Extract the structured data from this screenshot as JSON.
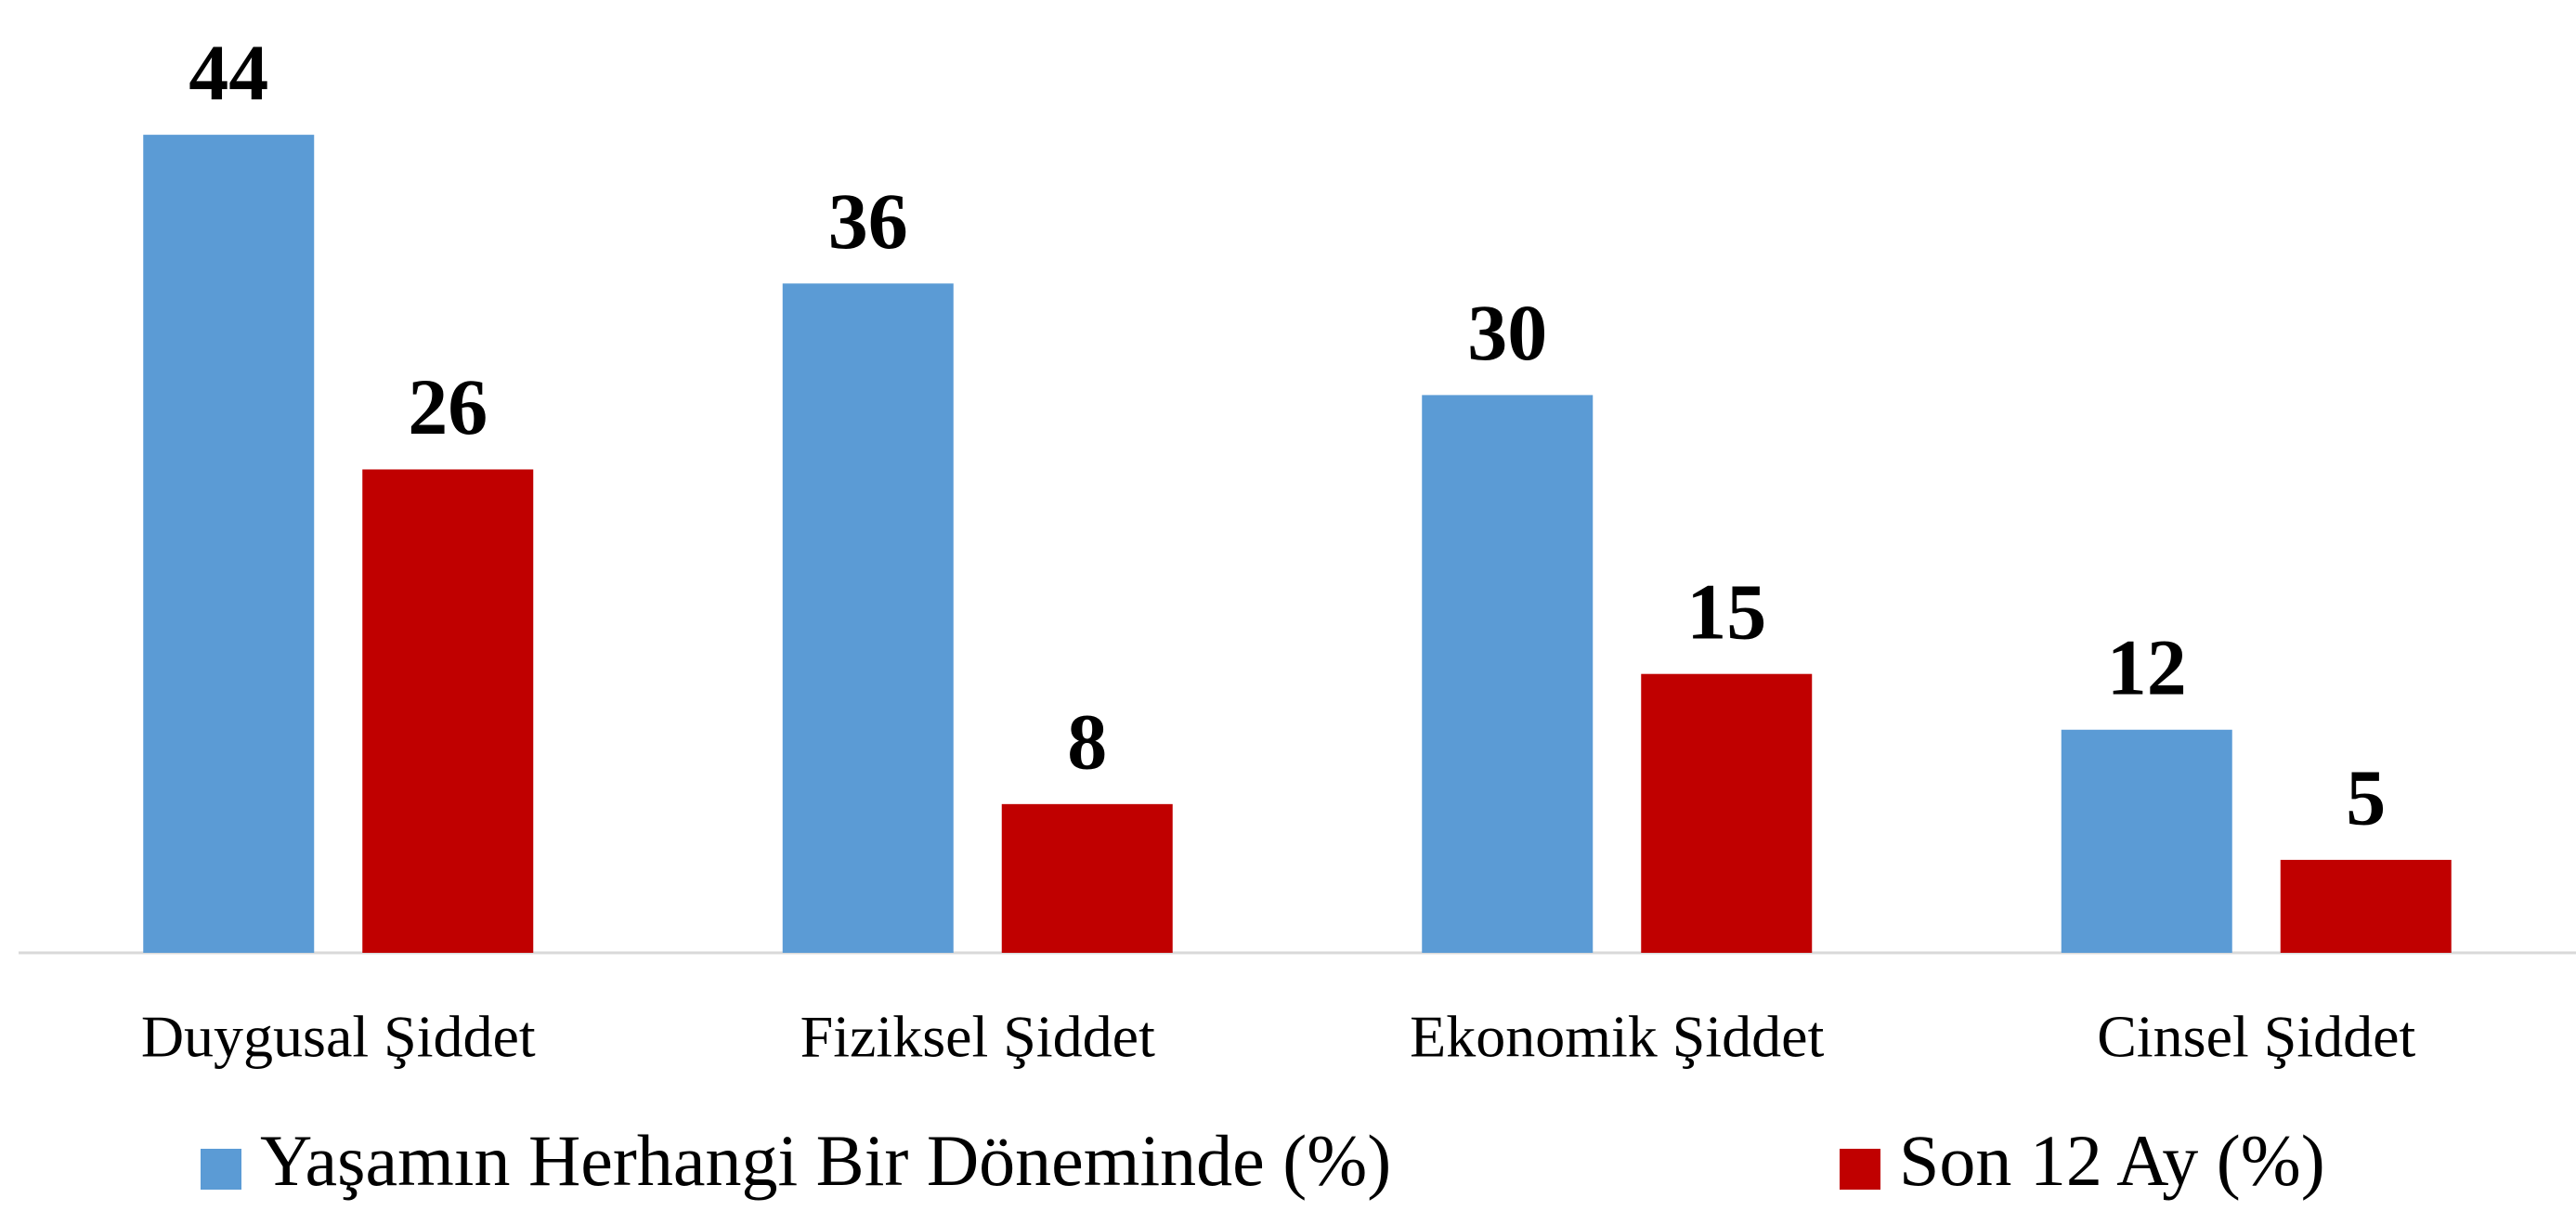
{
  "chart_data": {
    "type": "bar",
    "categories": [
      "Duygusal Şiddet",
      "Fiziksel Şiddet",
      "Ekonomik Şiddet",
      "Cinsel Şiddet"
    ],
    "series": [
      {
        "name": "Yaşamın Herhangi Bir Döneminde (%)",
        "color": "#5b9bd5",
        "values": [
          44,
          36,
          30,
          12
        ]
      },
      {
        "name": "Son 12 Ay (%)",
        "color": "#c00000",
        "values": [
          26,
          8,
          15,
          5
        ]
      }
    ],
    "ylim": [
      0,
      50
    ]
  }
}
